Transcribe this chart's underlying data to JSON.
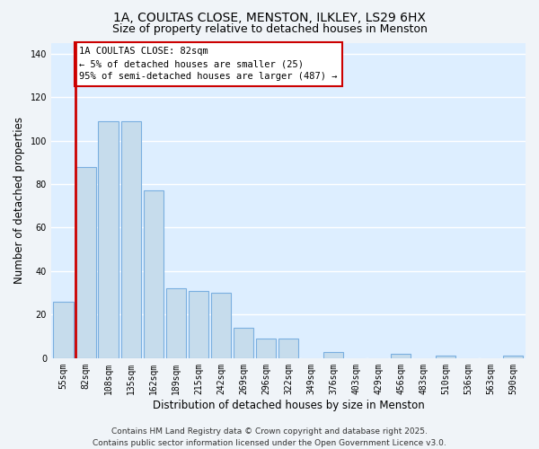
{
  "title_line1": "1A, COULTAS CLOSE, MENSTON, ILKLEY, LS29 6HX",
  "title_line2": "Size of property relative to detached houses in Menston",
  "xlabel": "Distribution of detached houses by size in Menston",
  "ylabel": "Number of detached properties",
  "categories": [
    "55sqm",
    "82sqm",
    "108sqm",
    "135sqm",
    "162sqm",
    "189sqm",
    "215sqm",
    "242sqm",
    "269sqm",
    "296sqm",
    "322sqm",
    "349sqm",
    "376sqm",
    "403sqm",
    "429sqm",
    "456sqm",
    "483sqm",
    "510sqm",
    "536sqm",
    "563sqm",
    "590sqm"
  ],
  "values": [
    26,
    88,
    109,
    109,
    77,
    32,
    31,
    30,
    14,
    9,
    9,
    0,
    3,
    0,
    0,
    2,
    0,
    1,
    0,
    0,
    1
  ],
  "bar_color": "#c6dcec",
  "bar_edge_color": "#7aafe0",
  "highlight_bar_index": 1,
  "highlight_line_color": "#cc0000",
  "ylim": [
    0,
    145
  ],
  "yticks": [
    0,
    20,
    40,
    60,
    80,
    100,
    120,
    140
  ],
  "annotation_text_line1": "1A COULTAS CLOSE: 82sqm",
  "annotation_text_line2": "← 5% of detached houses are smaller (25)",
  "annotation_text_line3": "95% of semi-detached houses are larger (487) →",
  "footer_line1": "Contains HM Land Registry data © Crown copyright and database right 2025.",
  "footer_line2": "Contains public sector information licensed under the Open Government Licence v3.0.",
  "background_color": "#f0f4f8",
  "plot_bg_color": "#ddeeff",
  "grid_color": "#ffffff",
  "title_fontsize": 10,
  "subtitle_fontsize": 9,
  "axis_label_fontsize": 8.5,
  "tick_fontsize": 7,
  "annotation_fontsize": 7.5,
  "footer_fontsize": 6.5
}
